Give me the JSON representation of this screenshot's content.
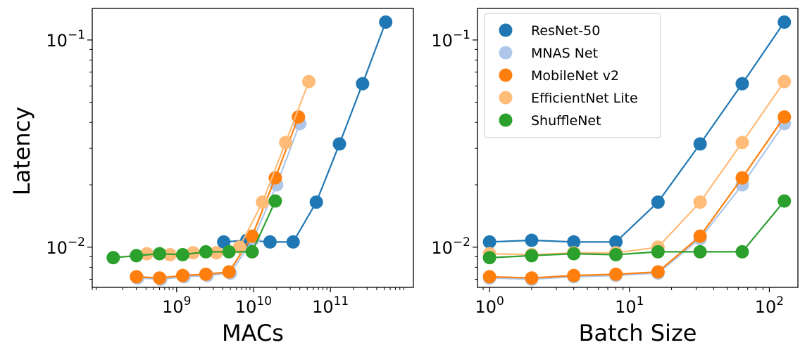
{
  "chart_data": [
    {
      "type": "line",
      "title": "",
      "xlabel": "MACs",
      "ylabel": "Latency",
      "xscale": "log",
      "yscale": "log",
      "xlim": [
        80000000.0,
        1200000000000.0
      ],
      "ylim": [
        0.0064,
        0.142
      ],
      "xticks": [
        {
          "value": 1000000000.0,
          "base": "10",
          "exp": "9"
        },
        {
          "value": 10000000000.0,
          "base": "10",
          "exp": "10"
        },
        {
          "value": 100000000000.0,
          "base": "10",
          "exp": "11"
        }
      ],
      "yticks": [
        {
          "value": 0.01,
          "base": "10",
          "exp": "−2"
        },
        {
          "value": 0.1,
          "base": "10",
          "exp": "−1"
        }
      ],
      "series": [
        {
          "name": "ResNet-50",
          "color": "#1f77b4",
          "x": [
            4100000000.0,
            8200000000.0,
            16400000000.0,
            32800000000.0,
            65600000000.0,
            131000000000.0,
            262000000000.0,
            524000000000.0
          ],
          "y": [
            0.0106,
            0.0108,
            0.0106,
            0.0106,
            0.0165,
            0.0315,
            0.0615,
            0.122
          ]
        },
        {
          "name": "MNAS Net",
          "color": "#aec7e8",
          "x": [
            310000000.0,
            620000000.0,
            1250000000.0,
            2500000000.0,
            5000000000.0,
            10000000000.0,
            20000000000.0,
            40000000000.0
          ],
          "y": [
            0.0071,
            0.007,
            0.0072,
            0.0073,
            0.0075,
            0.011,
            0.02,
            0.0395
          ]
        },
        {
          "name": "MobileNet v2",
          "color": "#ff7f0e",
          "x": [
            300000000.0,
            600000000.0,
            1200000000.0,
            2400000000.0,
            4800000000.0,
            9600000000.0,
            19200000000.0,
            38400000000.0
          ],
          "y": [
            0.0072,
            0.0071,
            0.0073,
            0.0074,
            0.0076,
            0.0113,
            0.0216,
            0.0425
          ]
        },
        {
          "name": "EfficientNet Lite",
          "color": "#ffbb78",
          "x": [
            410000000.0,
            820000000.0,
            1640000000.0,
            3280000000.0,
            6560000000.0,
            13100000000.0,
            26200000000.0,
            52400000000.0
          ],
          "y": [
            0.0093,
            0.0092,
            0.0094,
            0.0094,
            0.01,
            0.0165,
            0.032,
            0.063
          ]
        },
        {
          "name": "ShuffleNet",
          "color": "#2ca02c",
          "x": [
            150000000.0,
            300000000.0,
            600000000.0,
            1200000000.0,
            2400000000.0,
            4800000000.0,
            9600000000.0,
            19200000000.0
          ],
          "y": [
            0.0089,
            0.0091,
            0.0093,
            0.0092,
            0.0095,
            0.0095,
            0.0095,
            0.0167
          ]
        }
      ]
    },
    {
      "type": "line",
      "title": "",
      "xlabel": "Batch Size",
      "ylabel": "",
      "xscale": "log",
      "yscale": "log",
      "xlim": [
        0.82,
        160
      ],
      "ylim": [
        0.0064,
        0.142
      ],
      "xticks": [
        {
          "value": 1,
          "base": "10",
          "exp": "0"
        },
        {
          "value": 10,
          "base": "10",
          "exp": "1"
        },
        {
          "value": 100,
          "base": "10",
          "exp": "2"
        }
      ],
      "yticks": [
        {
          "value": 0.01,
          "base": "10",
          "exp": "−2"
        },
        {
          "value": 0.1,
          "base": "10",
          "exp": "−1"
        }
      ],
      "legend": "top-left",
      "series": [
        {
          "name": "ResNet-50",
          "color": "#1f77b4",
          "x": [
            1,
            2,
            4,
            8,
            16,
            32,
            64,
            128
          ],
          "y": [
            0.0106,
            0.0108,
            0.0106,
            0.0106,
            0.0165,
            0.0315,
            0.0615,
            0.122
          ]
        },
        {
          "name": "MNAS Net",
          "color": "#aec7e8",
          "x": [
            1,
            2,
            4,
            8,
            16,
            32,
            64,
            128
          ],
          "y": [
            0.0071,
            0.007,
            0.0072,
            0.0073,
            0.0075,
            0.011,
            0.02,
            0.0395
          ]
        },
        {
          "name": "MobileNet v2",
          "color": "#ff7f0e",
          "x": [
            1,
            2,
            4,
            8,
            16,
            32,
            64,
            128
          ],
          "y": [
            0.0072,
            0.0071,
            0.0073,
            0.0074,
            0.0076,
            0.0113,
            0.0216,
            0.0425
          ]
        },
        {
          "name": "EfficientNet Lite",
          "color": "#ffbb78",
          "x": [
            1,
            2,
            4,
            8,
            16,
            32,
            64,
            128
          ],
          "y": [
            0.0093,
            0.0092,
            0.0094,
            0.0094,
            0.01,
            0.0165,
            0.032,
            0.063
          ]
        },
        {
          "name": "ShuffleNet",
          "color": "#2ca02c",
          "x": [
            1,
            2,
            4,
            8,
            16,
            32,
            64,
            128
          ],
          "y": [
            0.0089,
            0.0091,
            0.0093,
            0.0092,
            0.0095,
            0.0095,
            0.0095,
            0.0167
          ]
        }
      ]
    }
  ]
}
